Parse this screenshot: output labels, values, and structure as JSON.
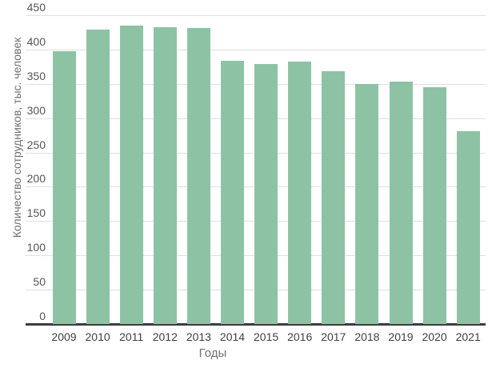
{
  "chart_data": {
    "type": "bar",
    "title": "",
    "xlabel": "Годы",
    "ylabel": "Количество сотрудников, тыс. человек",
    "categories": [
      "2009",
      "2010",
      "2011",
      "2012",
      "2013",
      "2014",
      "2015",
      "2016",
      "2017",
      "2018",
      "2019",
      "2020",
      "2021"
    ],
    "values": [
      398,
      429,
      435,
      433,
      431,
      383,
      379,
      382,
      368,
      350,
      353,
      345,
      281
    ],
    "ylim": [
      0,
      450
    ],
    "ytick_step": 50,
    "yticks": [
      "0",
      "50",
      "100",
      "150",
      "200",
      "250",
      "300",
      "350",
      "400",
      "450"
    ],
    "grid": true,
    "legend": "none",
    "bar_color": "#8dc3a4",
    "gridline_color": "#e0e0e0",
    "axis_line_color": "#3d3d3d",
    "tick_label_color": "#4a4a4a",
    "axis_title_color": "#6f6f6f",
    "background_color": "#ffffff"
  }
}
